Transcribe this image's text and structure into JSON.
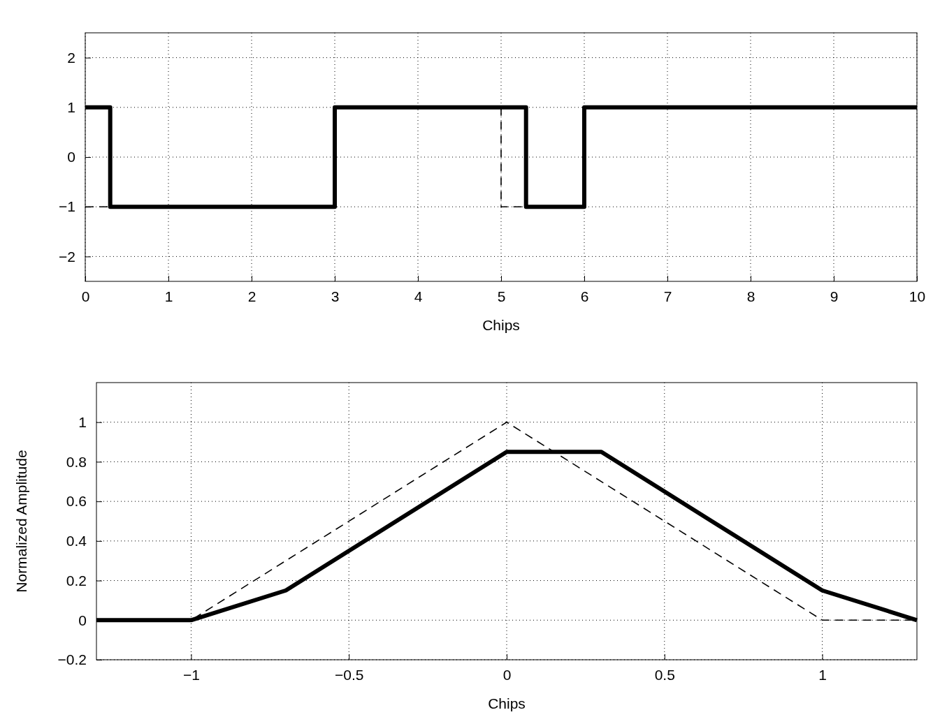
{
  "chart_data": [
    {
      "type": "step",
      "xlabel": "Chips",
      "xlim": [
        0,
        10
      ],
      "xticks": [
        0,
        1,
        2,
        3,
        4,
        5,
        6,
        7,
        8,
        9,
        10
      ],
      "ylim": [
        -2.5,
        2.5
      ],
      "yticks": [
        {
          "value": -2,
          "label": "−2"
        },
        {
          "value": -1,
          "label": "−1"
        },
        0,
        1,
        2
      ],
      "grid": true,
      "series": [
        {
          "color": "#000000",
          "line_style": "dashed",
          "x": [
            0,
            0.3,
            3,
            5,
            5,
            5.3
          ],
          "values": [
            -1,
            -1,
            null,
            1,
            -1,
            -1
          ]
        },
        {
          "color": "#000000",
          "line_style": "solid",
          "x": [
            0,
            0.3,
            3,
            5.3,
            6,
            10
          ],
          "values": [
            1,
            -1,
            1,
            -1,
            1,
            1
          ]
        }
      ]
    },
    {
      "type": "line",
      "xlabel": "Chips",
      "ylabel": "Normalized Amplitude",
      "xlim": [
        -1.3,
        1.3
      ],
      "xticks": [
        {
          "value": -1,
          "label": "−1"
        },
        {
          "value": -0.5,
          "label": "−0.5"
        },
        0,
        0.5,
        1
      ],
      "ylim": [
        -0.2,
        1.2
      ],
      "yticks": [
        {
          "value": -0.2,
          "label": "−0.2"
        },
        0,
        0.2,
        0.4,
        0.6,
        0.8,
        1
      ],
      "grid": true,
      "series": [
        {
          "color": "#000000",
          "line_style": "dashed",
          "x": [
            -1.3,
            -1,
            0,
            1,
            1.3
          ],
          "values": [
            0,
            0,
            1,
            0,
            0
          ]
        },
        {
          "color": "#000000",
          "line_style": "solid",
          "x": [
            -1.3,
            -1,
            -0.7,
            0,
            0.3,
            1,
            1.3
          ],
          "values": [
            0,
            0,
            0.15,
            0.85,
            0.85,
            0.15,
            0
          ]
        }
      ]
    }
  ]
}
